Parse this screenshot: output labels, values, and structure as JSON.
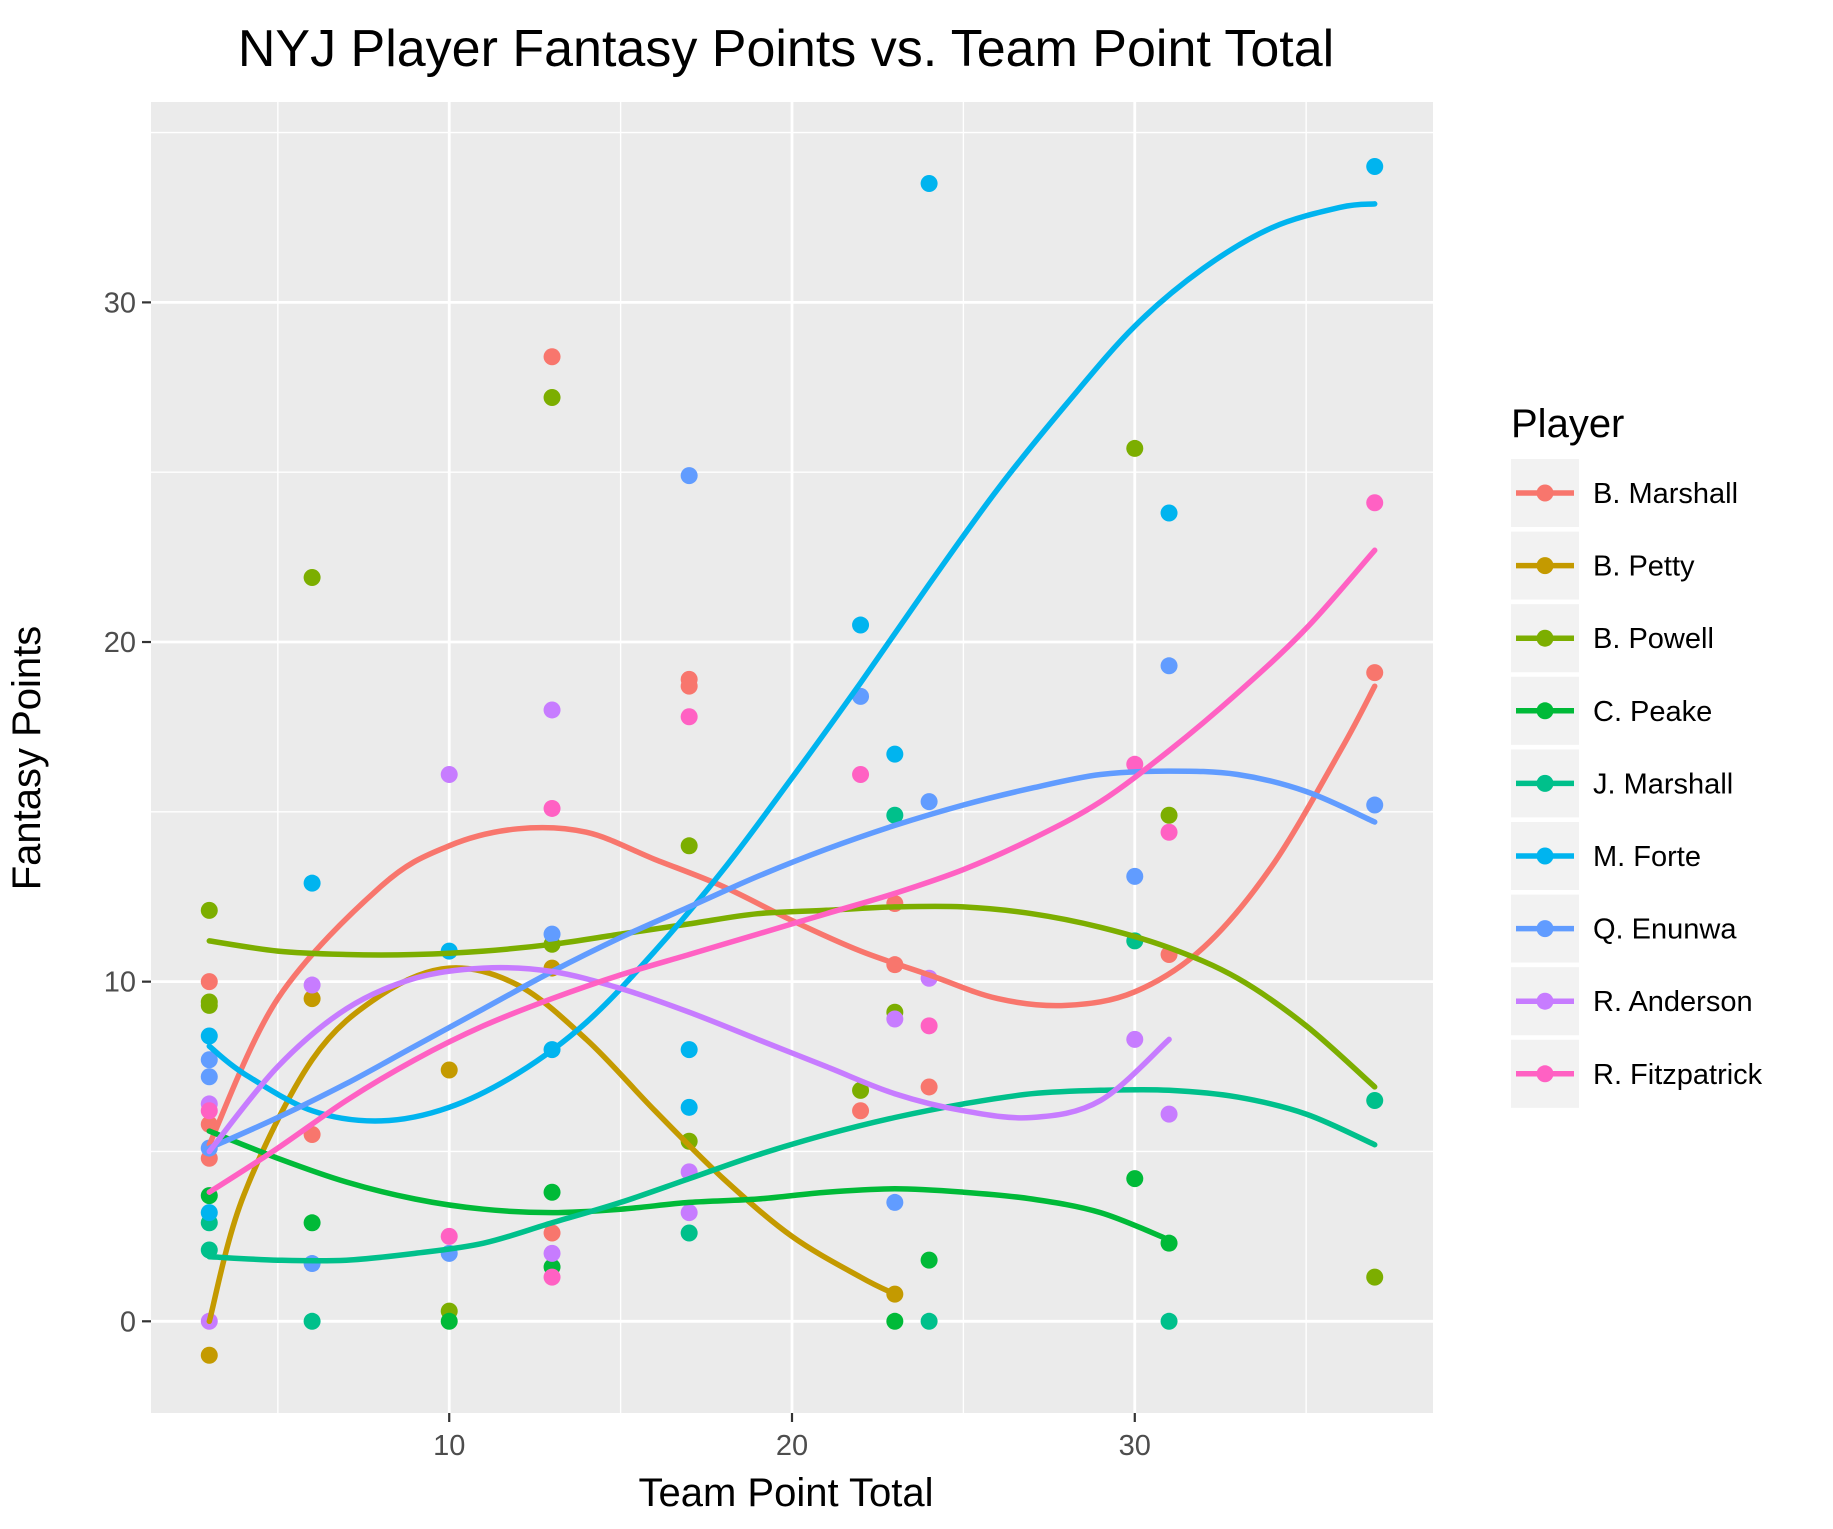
{
  "chart_data": {
    "type": "scatter",
    "title": "NYJ Player Fantasy Points vs. Team Point Total",
    "xlabel": "Team Point Total",
    "ylabel": "Fantasy Points",
    "xlim": [
      1.3,
      38.7
    ],
    "ylim": [
      -2.7,
      35.9
    ],
    "x_ticks": [
      10,
      20,
      30
    ],
    "y_ticks": [
      0,
      10,
      20,
      30
    ],
    "grid": true,
    "legend": {
      "title": "Player",
      "position": "right"
    },
    "series": [
      {
        "name": "B. Marshall",
        "color": "#F8766D",
        "points": [
          [
            3,
            10.0
          ],
          [
            3,
            5.8
          ],
          [
            3,
            4.8
          ],
          [
            6,
            5.5
          ],
          [
            13,
            28.4
          ],
          [
            13,
            2.6
          ],
          [
            17,
            18.9
          ],
          [
            17,
            18.7
          ],
          [
            22,
            6.2
          ],
          [
            23,
            10.5
          ],
          [
            23,
            12.3
          ],
          [
            24,
            6.9
          ],
          [
            31,
            10.8
          ],
          [
            37,
            19.1
          ]
        ],
        "trend": [
          [
            3,
            5.2
          ],
          [
            5,
            9.5
          ],
          [
            8,
            12.8
          ],
          [
            10,
            14.0
          ],
          [
            12,
            14.5
          ],
          [
            14,
            14.4
          ],
          [
            16,
            13.6
          ],
          [
            18,
            12.8
          ],
          [
            20,
            11.8
          ],
          [
            22,
            10.9
          ],
          [
            24,
            10.2
          ],
          [
            26,
            9.5
          ],
          [
            28,
            9.3
          ],
          [
            30,
            9.7
          ],
          [
            32,
            11.0
          ],
          [
            34,
            13.4
          ],
          [
            36,
            16.8
          ],
          [
            37,
            18.7
          ]
        ]
      },
      {
        "name": "B. Petty",
        "color": "#C49A00",
        "points": [
          [
            3,
            -1.0
          ],
          [
            6,
            9.5
          ],
          [
            10,
            7.4
          ],
          [
            13,
            10.4
          ],
          [
            23,
            0.8
          ]
        ],
        "trend": [
          [
            3,
            0
          ],
          [
            4,
            3.7
          ],
          [
            6,
            7.7
          ],
          [
            8,
            9.6
          ],
          [
            10,
            10.4
          ],
          [
            12,
            9.9
          ],
          [
            14,
            8.3
          ],
          [
            16,
            6.2
          ],
          [
            18,
            4.2
          ],
          [
            20,
            2.5
          ],
          [
            22,
            1.3
          ],
          [
            23,
            0.8
          ]
        ]
      },
      {
        "name": "B. Powell",
        "color": "#7CAE00",
        "points": [
          [
            3,
            12.1
          ],
          [
            3,
            9.4
          ],
          [
            3,
            9.3
          ],
          [
            6,
            21.9
          ],
          [
            10,
            0.3
          ],
          [
            13,
            27.2
          ],
          [
            13,
            11.1
          ],
          [
            17,
            14.0
          ],
          [
            17,
            5.3
          ],
          [
            22,
            6.8
          ],
          [
            23,
            9.1
          ],
          [
            30,
            25.7
          ],
          [
            31,
            14.9
          ],
          [
            37,
            1.3
          ]
        ],
        "trend": [
          [
            3,
            11.2
          ],
          [
            5,
            10.9
          ],
          [
            7,
            10.8
          ],
          [
            9,
            10.8
          ],
          [
            11,
            10.9
          ],
          [
            13,
            11.1
          ],
          [
            15,
            11.4
          ],
          [
            17,
            11.7
          ],
          [
            19,
            12.0
          ],
          [
            21,
            12.1
          ],
          [
            23,
            12.2
          ],
          [
            25,
            12.2
          ],
          [
            27,
            12.0
          ],
          [
            29,
            11.6
          ],
          [
            31,
            11.0
          ],
          [
            33,
            10.1
          ],
          [
            35,
            8.7
          ],
          [
            37,
            6.9
          ]
        ]
      },
      {
        "name": "C. Peake",
        "color": "#00BA38",
        "points": [
          [
            3,
            3.7
          ],
          [
            6,
            2.9
          ],
          [
            10,
            0.0
          ],
          [
            13,
            3.8
          ],
          [
            13,
            1.6
          ],
          [
            23,
            0.0
          ],
          [
            24,
            1.8
          ],
          [
            30,
            4.2
          ],
          [
            31,
            2.3
          ]
        ],
        "trend": [
          [
            3,
            5.6
          ],
          [
            5,
            4.8
          ],
          [
            7,
            4.1
          ],
          [
            9,
            3.6
          ],
          [
            11,
            3.3
          ],
          [
            13,
            3.2
          ],
          [
            15,
            3.3
          ],
          [
            17,
            3.5
          ],
          [
            19,
            3.6
          ],
          [
            21,
            3.8
          ],
          [
            23,
            3.9
          ],
          [
            25,
            3.8
          ],
          [
            27,
            3.6
          ],
          [
            29,
            3.2
          ],
          [
            31,
            2.4
          ]
        ]
      },
      {
        "name": "J. Marshall",
        "color": "#00C08B",
        "points": [
          [
            3,
            2.9
          ],
          [
            3,
            2.1
          ],
          [
            6,
            0.0
          ],
          [
            17,
            2.6
          ],
          [
            23,
            14.9
          ],
          [
            24,
            0.0
          ],
          [
            30,
            11.2
          ],
          [
            31,
            0.0
          ],
          [
            37,
            6.5
          ]
        ],
        "trend": [
          [
            3,
            1.9
          ],
          [
            5,
            1.8
          ],
          [
            7,
            1.8
          ],
          [
            9,
            2.0
          ],
          [
            11,
            2.3
          ],
          [
            13,
            2.9
          ],
          [
            15,
            3.5
          ],
          [
            17,
            4.2
          ],
          [
            19,
            4.9
          ],
          [
            21,
            5.5
          ],
          [
            23,
            6.0
          ],
          [
            25,
            6.4
          ],
          [
            27,
            6.7
          ],
          [
            29,
            6.8
          ],
          [
            31,
            6.8
          ],
          [
            33,
            6.6
          ],
          [
            35,
            6.1
          ],
          [
            37,
            5.2
          ]
        ]
      },
      {
        "name": "M. Forte",
        "color": "#00B4EF",
        "points": [
          [
            3,
            8.4
          ],
          [
            3,
            3.2
          ],
          [
            6,
            12.9
          ],
          [
            10,
            10.9
          ],
          [
            13,
            8.0
          ],
          [
            17,
            8.0
          ],
          [
            17,
            6.3
          ],
          [
            22,
            20.5
          ],
          [
            23,
            16.7
          ],
          [
            24,
            33.5
          ],
          [
            31,
            23.8
          ],
          [
            37,
            34.0
          ]
        ],
        "trend": [
          [
            3,
            8.1
          ],
          [
            4,
            7.3
          ],
          [
            6,
            6.2
          ],
          [
            8,
            5.9
          ],
          [
            10,
            6.3
          ],
          [
            12,
            7.3
          ],
          [
            14,
            8.8
          ],
          [
            16,
            10.9
          ],
          [
            18,
            13.3
          ],
          [
            20,
            16.0
          ],
          [
            22,
            18.8
          ],
          [
            24,
            21.7
          ],
          [
            26,
            24.5
          ],
          [
            28,
            27.0
          ],
          [
            30,
            29.3
          ],
          [
            32,
            31.0
          ],
          [
            34,
            32.2
          ],
          [
            36,
            32.8
          ],
          [
            37,
            32.9
          ]
        ]
      },
      {
        "name": "Q. Enunwa",
        "color": "#619CFF",
        "points": [
          [
            3,
            7.7
          ],
          [
            3,
            7.2
          ],
          [
            3,
            5.1
          ],
          [
            6,
            1.7
          ],
          [
            10,
            2.0
          ],
          [
            13,
            11.4
          ],
          [
            17,
            24.9
          ],
          [
            22,
            18.4
          ],
          [
            23,
            3.5
          ],
          [
            24,
            15.3
          ],
          [
            30,
            13.1
          ],
          [
            31,
            19.3
          ],
          [
            37,
            15.2
          ]
        ],
        "trend": [
          [
            3,
            5.1
          ],
          [
            5,
            6.0
          ],
          [
            7,
            7.0
          ],
          [
            9,
            8.1
          ],
          [
            11,
            9.2
          ],
          [
            13,
            10.3
          ],
          [
            15,
            11.3
          ],
          [
            17,
            12.2
          ],
          [
            19,
            13.1
          ],
          [
            21,
            13.9
          ],
          [
            23,
            14.6
          ],
          [
            25,
            15.2
          ],
          [
            27,
            15.7
          ],
          [
            29,
            16.1
          ],
          [
            31,
            16.2
          ],
          [
            33,
            16.1
          ],
          [
            35,
            15.6
          ],
          [
            37,
            14.7
          ]
        ]
      },
      {
        "name": "R. Anderson",
        "color": "#C77CFF",
        "points": [
          [
            3,
            6.4
          ],
          [
            3,
            0.0
          ],
          [
            6,
            9.9
          ],
          [
            10,
            16.1
          ],
          [
            13,
            18.0
          ],
          [
            13,
            2.0
          ],
          [
            17,
            4.4
          ],
          [
            17,
            3.2
          ],
          [
            23,
            8.9
          ],
          [
            24,
            10.1
          ],
          [
            30,
            8.3
          ],
          [
            31,
            6.1
          ]
        ],
        "trend": [
          [
            3,
            5.0
          ],
          [
            5,
            7.5
          ],
          [
            7,
            9.2
          ],
          [
            9,
            10.1
          ],
          [
            11,
            10.4
          ],
          [
            13,
            10.3
          ],
          [
            15,
            9.8
          ],
          [
            17,
            9.1
          ],
          [
            19,
            8.3
          ],
          [
            21,
            7.5
          ],
          [
            23,
            6.7
          ],
          [
            25,
            6.2
          ],
          [
            27,
            6.0
          ],
          [
            29,
            6.5
          ],
          [
            31,
            8.3
          ]
        ]
      },
      {
        "name": "R. Fitzpatrick",
        "color": "#FF61C3",
        "points": [
          [
            3,
            6.2
          ],
          [
            10,
            2.5
          ],
          [
            13,
            15.1
          ],
          [
            13,
            1.3
          ],
          [
            17,
            17.8
          ],
          [
            22,
            16.1
          ],
          [
            24,
            8.7
          ],
          [
            30,
            16.4
          ],
          [
            31,
            14.4
          ],
          [
            37,
            24.1
          ]
        ],
        "trend": [
          [
            3,
            3.8
          ],
          [
            5,
            5.1
          ],
          [
            7,
            6.5
          ],
          [
            9,
            7.7
          ],
          [
            11,
            8.7
          ],
          [
            13,
            9.5
          ],
          [
            15,
            10.2
          ],
          [
            17,
            10.8
          ],
          [
            19,
            11.4
          ],
          [
            21,
            12.0
          ],
          [
            23,
            12.6
          ],
          [
            25,
            13.3
          ],
          [
            27,
            14.2
          ],
          [
            29,
            15.3
          ],
          [
            31,
            16.8
          ],
          [
            33,
            18.5
          ],
          [
            35,
            20.4
          ],
          [
            37,
            22.7
          ]
        ]
      }
    ]
  }
}
